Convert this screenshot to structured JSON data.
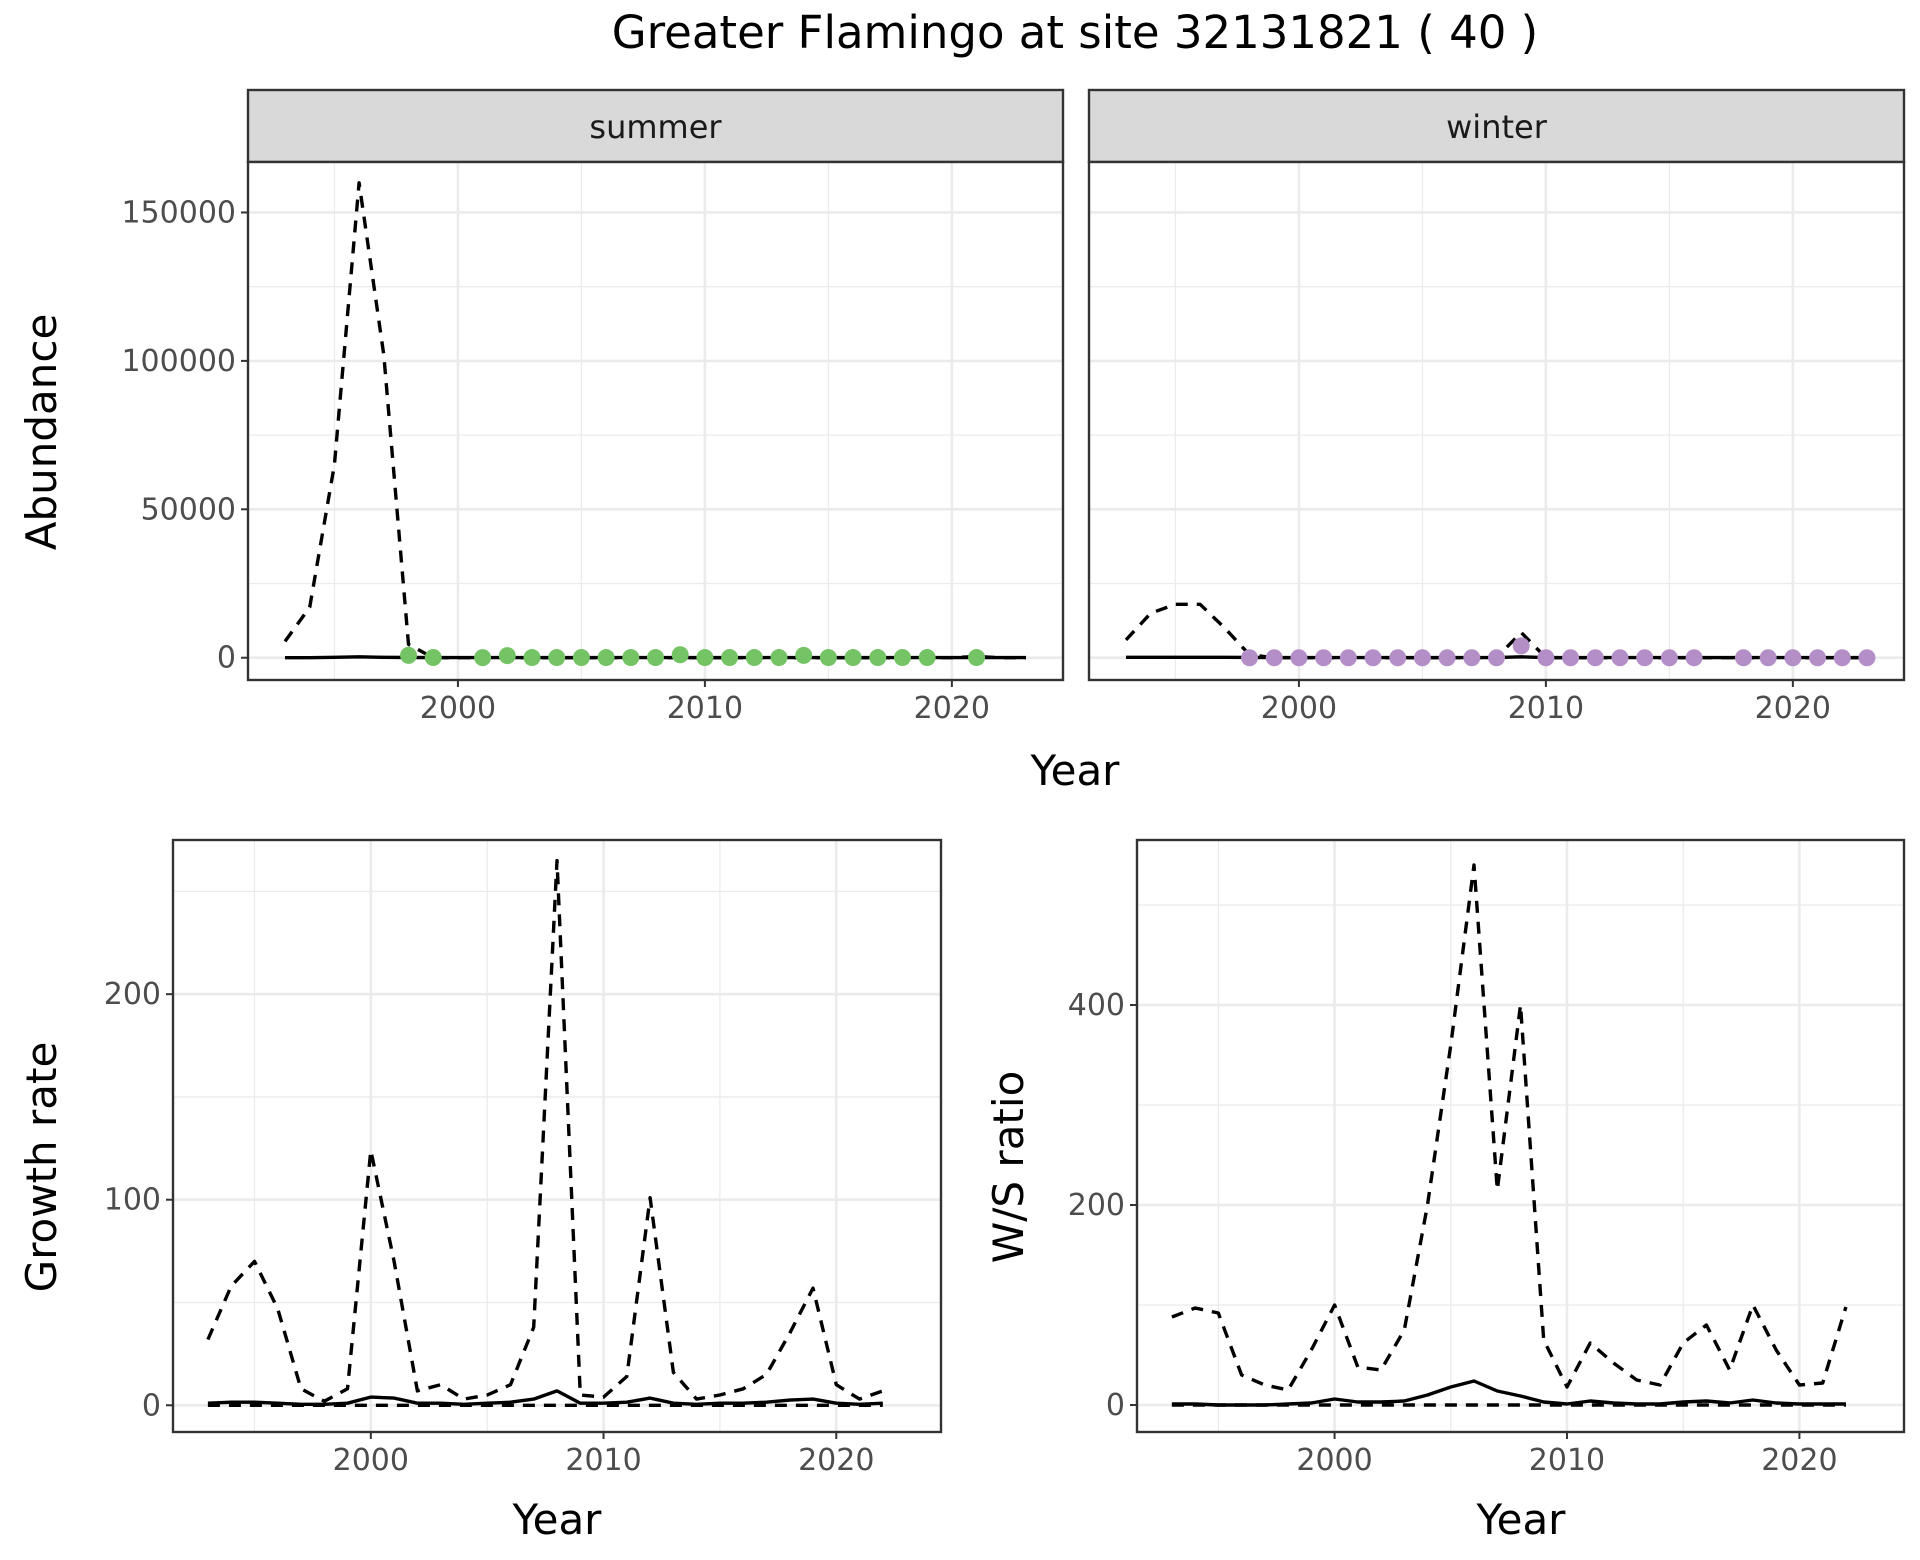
{
  "figure": {
    "title": "Greater Flamingo at site 32131821 ( 40 )"
  },
  "chart_data": [
    {
      "type": "line",
      "title": "summer",
      "xlabel": "Year",
      "ylabel": "Abundance",
      "xlim": [
        1991.5,
        2024.5
      ],
      "ylim": [
        -7500,
        167000
      ],
      "x_ticks": [
        2000,
        2010,
        2020
      ],
      "y_ticks": [
        0,
        50000,
        100000,
        150000
      ],
      "y_tick_labels": [
        "0",
        "50000",
        "100000",
        "150000"
      ],
      "grid": true,
      "point_color": "#74c365",
      "series": [
        {
          "style": "dashed",
          "x": [
            1993,
            1994,
            1995,
            1996,
            1997,
            1998,
            1999,
            2000,
            2001,
            2002,
            2003,
            2004,
            2005,
            2006,
            2007,
            2008,
            2009,
            2010,
            2011,
            2012,
            2013,
            2014,
            2015,
            2016,
            2017,
            2018,
            2019,
            2020,
            2021,
            2022,
            2023
          ],
          "values": [
            5500,
            17000,
            65000,
            160000,
            102000,
            4500,
            0,
            0,
            0,
            0,
            0,
            0,
            0,
            0,
            0,
            0,
            0,
            0,
            0,
            0,
            0,
            0,
            0,
            0,
            0,
            0,
            0,
            0,
            400,
            0,
            0
          ]
        },
        {
          "style": "solid",
          "x": [
            1993,
            1994,
            1995,
            1996,
            1997,
            1998,
            1999,
            2000,
            2001,
            2002,
            2003,
            2004,
            2005,
            2006,
            2007,
            2008,
            2009,
            2010,
            2011,
            2012,
            2013,
            2014,
            2015,
            2016,
            2017,
            2018,
            2019,
            2020,
            2021,
            2022,
            2023
          ],
          "values": [
            0,
            0,
            150,
            300,
            150,
            80,
            50,
            40,
            30,
            40,
            30,
            30,
            30,
            30,
            30,
            30,
            30,
            30,
            30,
            30,
            30,
            30,
            30,
            30,
            30,
            30,
            30,
            30,
            30,
            30,
            30
          ]
        },
        {
          "style": "points",
          "x": [
            1998,
            1999,
            2001,
            2002,
            2003,
            2004,
            2005,
            2006,
            2007,
            2008,
            2009,
            2010,
            2011,
            2012,
            2013,
            2014,
            2015,
            2016,
            2017,
            2018,
            2019,
            2021
          ],
          "values": [
            800,
            80,
            50,
            700,
            60,
            60,
            60,
            60,
            60,
            60,
            1000,
            60,
            60,
            60,
            60,
            800,
            60,
            60,
            60,
            60,
            60,
            60
          ]
        }
      ]
    },
    {
      "type": "line",
      "title": "winter",
      "xlabel": "Year",
      "ylabel": "",
      "xlim": [
        1991.5,
        2024.5
      ],
      "ylim": [
        -7500,
        167000
      ],
      "x_ticks": [
        2000,
        2010,
        2020
      ],
      "y_ticks": [
        0,
        50000,
        100000,
        150000
      ],
      "grid": true,
      "point_color": "#b48fc7",
      "series": [
        {
          "style": "dashed",
          "x": [
            1993,
            1994,
            1995,
            1996,
            1997,
            1998,
            1999,
            2000,
            2001,
            2002,
            2003,
            2004,
            2005,
            2006,
            2007,
            2008,
            2009,
            2010,
            2011,
            2012,
            2013,
            2014,
            2015,
            2016,
            2017,
            2018,
            2019,
            2020,
            2021,
            2022,
            2023
          ],
          "values": [
            6000,
            15000,
            18000,
            18000,
            10000,
            1000,
            0,
            0,
            0,
            0,
            0,
            0,
            0,
            0,
            0,
            0,
            8500,
            0,
            0,
            0,
            0,
            0,
            0,
            0,
            0,
            0,
            0,
            0,
            0,
            0,
            0
          ]
        },
        {
          "style": "solid",
          "x": [
            1993,
            1994,
            1995,
            1996,
            1997,
            1998,
            1999,
            2000,
            2001,
            2002,
            2003,
            2004,
            2005,
            2006,
            2007,
            2008,
            2009,
            2010,
            2011,
            2012,
            2013,
            2014,
            2015,
            2016,
            2017,
            2018,
            2019,
            2020,
            2021,
            2022,
            2023
          ],
          "values": [
            150,
            150,
            150,
            150,
            150,
            100,
            50,
            40,
            30,
            30,
            30,
            30,
            30,
            30,
            30,
            30,
            300,
            30,
            30,
            30,
            30,
            30,
            30,
            30,
            30,
            30,
            30,
            30,
            30,
            30,
            30
          ]
        },
        {
          "style": "points",
          "x": [
            1998,
            1999,
            2000,
            2001,
            2002,
            2003,
            2004,
            2005,
            2006,
            2007,
            2008,
            2009,
            2010,
            2011,
            2012,
            2013,
            2014,
            2015,
            2016,
            2018,
            2019,
            2020,
            2021,
            2022,
            2023
          ],
          "values": [
            0,
            0,
            0,
            0,
            0,
            0,
            0,
            0,
            0,
            0,
            0,
            4000,
            0,
            0,
            0,
            0,
            0,
            0,
            0,
            0,
            0,
            0,
            0,
            0,
            0
          ]
        }
      ]
    },
    {
      "type": "line",
      "title": "",
      "xlabel": "Year",
      "ylabel": "Growth rate",
      "xlim": [
        1991.5,
        2024.5
      ],
      "ylim": [
        -13,
        275
      ],
      "x_ticks": [
        2000,
        2010,
        2020
      ],
      "y_ticks": [
        0,
        100,
        200
      ],
      "y_tick_labels": [
        "0",
        "100",
        "200"
      ],
      "grid": true,
      "series": [
        {
          "style": "dashed",
          "x": [
            1993,
            1994,
            1995,
            1996,
            1997,
            1998,
            1999,
            2000,
            2001,
            2002,
            2003,
            2004,
            2005,
            2006,
            2007,
            2008,
            2009,
            2010,
            2011,
            2012,
            2013,
            2014,
            2015,
            2016,
            2017,
            2018,
            2019,
            2020,
            2021,
            2022
          ],
          "values": [
            32,
            58,
            70,
            47,
            8,
            2,
            8,
            124,
            70,
            7,
            10,
            3,
            5,
            10,
            38,
            265,
            5,
            4,
            14,
            101,
            16,
            3,
            5,
            8,
            15,
            35,
            57,
            10,
            3,
            7
          ]
        },
        {
          "style": "solid",
          "x": [
            1993,
            1994,
            1995,
            1996,
            1997,
            1998,
            1999,
            2000,
            2001,
            2002,
            2003,
            2004,
            2005,
            2006,
            2007,
            2008,
            2009,
            2010,
            2011,
            2012,
            2013,
            2014,
            2015,
            2016,
            2017,
            2018,
            2019,
            2020,
            2021,
            2022
          ],
          "values": [
            1,
            1.5,
            1.5,
            1,
            0.5,
            0.5,
            1,
            4,
            3.5,
            1,
            1,
            0.5,
            1,
            1.5,
            3,
            7,
            1,
            1,
            1.5,
            3.5,
            1,
            0.5,
            1,
            1,
            1.5,
            2.5,
            3,
            1,
            0.5,
            1
          ]
        },
        {
          "style": "dashed",
          "x": [
            1993,
            2022
          ],
          "values": [
            0,
            0
          ]
        }
      ]
    },
    {
      "type": "line",
      "title": "",
      "xlabel": "Year",
      "ylabel": "W/S ratio",
      "xlim": [
        1991.5,
        2024.5
      ],
      "ylim": [
        -27,
        565
      ],
      "x_ticks": [
        2000,
        2010,
        2020
      ],
      "y_ticks": [
        0,
        200,
        400
      ],
      "y_tick_labels": [
        "0",
        "200",
        "400"
      ],
      "grid": true,
      "series": [
        {
          "style": "dashed",
          "x": [
            1993,
            1994,
            1995,
            1996,
            1997,
            1998,
            1999,
            2000,
            2001,
            2002,
            2003,
            2004,
            2005,
            2006,
            2007,
            2008,
            2009,
            2010,
            2011,
            2012,
            2013,
            2014,
            2015,
            2016,
            2017,
            2018,
            2019,
            2020,
            2021,
            2022
          ],
          "values": [
            88,
            97,
            92,
            30,
            20,
            15,
            55,
            100,
            38,
            35,
            75,
            200,
            360,
            540,
            215,
            400,
            65,
            18,
            62,
            42,
            25,
            20,
            62,
            80,
            35,
            100,
            55,
            20,
            22,
            98
          ]
        },
        {
          "style": "solid",
          "x": [
            1993,
            1994,
            1995,
            1996,
            1997,
            1998,
            1999,
            2000,
            2001,
            2002,
            2003,
            2004,
            2005,
            2006,
            2007,
            2008,
            2009,
            2010,
            2011,
            2012,
            2013,
            2014,
            2015,
            2016,
            2017,
            2018,
            2019,
            2020,
            2021,
            2022
          ],
          "values": [
            1,
            1,
            0,
            0,
            0,
            1,
            2,
            6,
            3,
            3,
            4,
            10,
            18,
            24,
            14,
            9,
            3,
            1,
            4,
            2,
            1,
            1,
            3,
            4,
            2,
            5,
            2,
            1,
            1,
            1
          ]
        },
        {
          "style": "dashed",
          "x": [
            1993,
            2022
          ],
          "values": [
            0,
            0
          ]
        }
      ]
    }
  ]
}
